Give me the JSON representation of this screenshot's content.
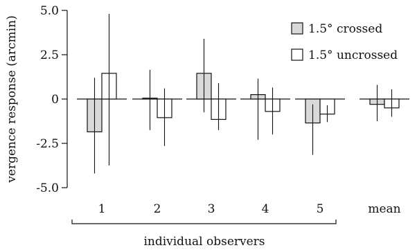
{
  "chart_data": {
    "type": "bar",
    "ylabel": "vergence response (arcmin)",
    "ylim": [
      -5.0,
      5.0
    ],
    "yticks": [
      "5.0",
      "2.5",
      "0",
      "-2.5",
      "-5.0"
    ],
    "ytick_values": [
      5.0,
      2.5,
      0,
      -2.5,
      -5.0
    ],
    "categories": [
      "1",
      "2",
      "3",
      "4",
      "5",
      "mean"
    ],
    "group_label": "individual observers",
    "grid": false,
    "legend_position": "top-right",
    "series": [
      {
        "name": "1.5° crossed",
        "color": "#d9d9d9",
        "values": [
          -1.85,
          0.05,
          1.45,
          0.25,
          -1.35,
          -0.3
        ],
        "error_low": [
          -4.2,
          -1.75,
          -0.75,
          -2.3,
          -3.15,
          -1.25
        ],
        "error_high": [
          1.2,
          1.65,
          3.4,
          1.15,
          -0.3,
          0.8
        ]
      },
      {
        "name": "1.5° uncrossed",
        "color": "#ffffff",
        "values": [
          1.45,
          -1.05,
          -1.15,
          -0.7,
          -0.85,
          -0.5
        ],
        "error_low": [
          -3.75,
          -2.65,
          -1.75,
          -2.0,
          -1.3,
          -1.0
        ],
        "error_high": [
          4.8,
          0.6,
          0.9,
          0.65,
          -0.35,
          0.55
        ]
      }
    ]
  }
}
